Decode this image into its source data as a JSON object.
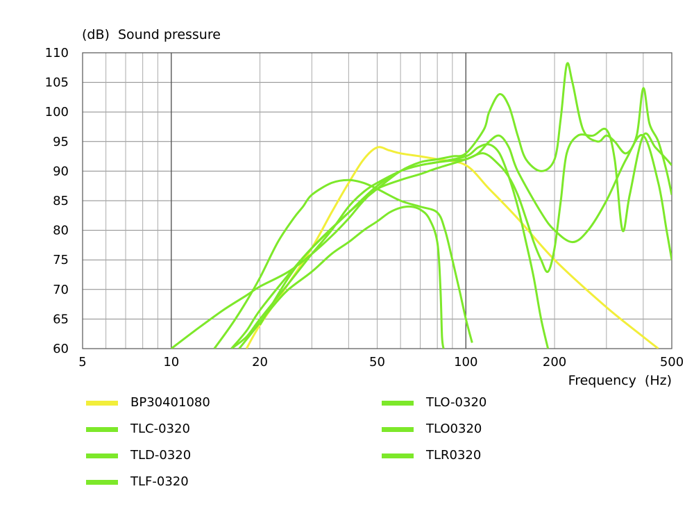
{
  "chart_data": {
    "type": "line",
    "title": "",
    "ylabel": "(dB)  Sound pressure",
    "xlabel": "Frequency  (Hz)",
    "x_scale": "log",
    "xlim": [
      5,
      500
    ],
    "ylim": [
      60,
      110
    ],
    "x_ticks": [
      5,
      10,
      20,
      50,
      100,
      200,
      500
    ],
    "x_tick_labels": [
      "5",
      "10",
      "20",
      "50",
      "100",
      "200",
      "500"
    ],
    "y_ticks": [
      60,
      65,
      70,
      75,
      80,
      85,
      90,
      95,
      100,
      105,
      110
    ],
    "y_tick_labels": [
      "60",
      "65",
      "70",
      "75",
      "80",
      "85",
      "90",
      "95",
      "100",
      "105",
      "110"
    ],
    "grid": true,
    "legend_position": "bottom",
    "series": [
      {
        "name": "BP30401080",
        "color": "#f2ee3a",
        "points": [
          [
            18,
            60
          ],
          [
            20,
            64
          ],
          [
            25,
            71
          ],
          [
            30,
            77
          ],
          [
            35,
            83
          ],
          [
            40,
            88
          ],
          [
            45,
            92
          ],
          [
            50,
            94
          ],
          [
            55,
            93.5
          ],
          [
            60,
            93
          ],
          [
            70,
            92.5
          ],
          [
            80,
            92
          ],
          [
            100,
            91
          ],
          [
            120,
            87
          ],
          [
            150,
            82
          ],
          [
            200,
            75
          ],
          [
            300,
            67
          ],
          [
            400,
            62
          ],
          [
            450,
            60
          ]
        ]
      },
      {
        "name": "TLC-0320",
        "color": "#7de82a",
        "points": [
          [
            10,
            60
          ],
          [
            12,
            63
          ],
          [
            15,
            66.5
          ],
          [
            18,
            69
          ],
          [
            20,
            70.5
          ],
          [
            25,
            73
          ],
          [
            30,
            76
          ],
          [
            35,
            79
          ],
          [
            40,
            82
          ],
          [
            45,
            85
          ],
          [
            50,
            87
          ],
          [
            60,
            88.5
          ],
          [
            70,
            89.5
          ],
          [
            80,
            90.5
          ],
          [
            100,
            92
          ],
          [
            110,
            93
          ],
          [
            120,
            95
          ],
          [
            130,
            96
          ],
          [
            140,
            94
          ],
          [
            150,
            90
          ],
          [
            180,
            83
          ],
          [
            200,
            80
          ],
          [
            230,
            78
          ],
          [
            260,
            80
          ],
          [
            300,
            85
          ],
          [
            350,
            92
          ],
          [
            400,
            96
          ],
          [
            450,
            88
          ],
          [
            480,
            80
          ],
          [
            500,
            75
          ]
        ]
      },
      {
        "name": "TLD-0320",
        "color": "#7de82a",
        "points": [
          [
            14,
            60
          ],
          [
            16,
            64
          ],
          [
            18,
            68
          ],
          [
            20,
            72
          ],
          [
            23,
            78
          ],
          [
            26,
            82
          ],
          [
            28,
            84
          ],
          [
            30,
            86
          ],
          [
            35,
            88
          ],
          [
            40,
            88.5
          ],
          [
            45,
            88
          ],
          [
            50,
            87
          ],
          [
            60,
            85
          ],
          [
            70,
            84
          ],
          [
            80,
            83
          ],
          [
            85,
            80
          ],
          [
            90,
            75
          ],
          [
            95,
            70
          ],
          [
            100,
            65
          ],
          [
            105,
            61
          ]
        ]
      },
      {
        "name": "TLF-0320",
        "color": "#7de82a",
        "points": [
          [
            16,
            60
          ],
          [
            18,
            62
          ],
          [
            20,
            65
          ],
          [
            25,
            71
          ],
          [
            30,
            76
          ],
          [
            35,
            80
          ],
          [
            40,
            84
          ],
          [
            45,
            86.5
          ],
          [
            50,
            88
          ],
          [
            60,
            90
          ],
          [
            70,
            91
          ],
          [
            80,
            91.5
          ],
          [
            100,
            92.5
          ],
          [
            110,
            94
          ],
          [
            120,
            94.5
          ],
          [
            130,
            93
          ],
          [
            140,
            89
          ],
          [
            150,
            84
          ],
          [
            160,
            78
          ],
          [
            170,
            72
          ],
          [
            180,
            65
          ],
          [
            190,
            60
          ]
        ]
      },
      {
        "name": "TLO-0320",
        "color": "#7de82a",
        "points": [
          [
            16,
            60
          ],
          [
            18,
            63
          ],
          [
            20,
            66.5
          ],
          [
            25,
            72.5
          ],
          [
            30,
            77
          ],
          [
            40,
            83
          ],
          [
            50,
            87.5
          ],
          [
            60,
            90
          ],
          [
            70,
            91
          ],
          [
            80,
            91.5
          ],
          [
            90,
            91.8
          ],
          [
            100,
            92
          ],
          [
            115,
            93
          ],
          [
            130,
            91
          ],
          [
            140,
            89
          ],
          [
            150,
            86
          ],
          [
            160,
            82
          ],
          [
            170,
            78
          ],
          [
            180,
            75
          ],
          [
            190,
            73
          ],
          [
            200,
            77
          ],
          [
            210,
            85
          ],
          [
            220,
            93
          ],
          [
            240,
            96
          ],
          [
            270,
            96
          ],
          [
            300,
            97
          ],
          [
            320,
            92
          ],
          [
            340,
            80
          ],
          [
            360,
            86
          ],
          [
            400,
            96
          ],
          [
            440,
            94
          ],
          [
            480,
            92
          ],
          [
            500,
            91
          ]
        ]
      },
      {
        "name": "TLO0320",
        "color": "#7de82a",
        "points": [
          [
            17,
            60
          ],
          [
            19,
            63
          ],
          [
            22,
            67
          ],
          [
            25,
            70
          ],
          [
            30,
            73
          ],
          [
            35,
            76
          ],
          [
            40,
            78
          ],
          [
            45,
            80
          ],
          [
            50,
            81.5
          ],
          [
            55,
            83
          ],
          [
            60,
            83.8
          ],
          [
            65,
            84
          ],
          [
            70,
            83.5
          ],
          [
            75,
            82
          ],
          [
            80,
            78
          ],
          [
            82,
            70
          ],
          [
            83,
            62
          ],
          [
            84,
            60
          ]
        ]
      },
      {
        "name": "TLR0320",
        "color": "#7de82a",
        "points": [
          [
            20,
            64
          ],
          [
            25,
            72
          ],
          [
            30,
            77
          ],
          [
            40,
            83
          ],
          [
            50,
            87
          ],
          [
            60,
            90
          ],
          [
            70,
            91.5
          ],
          [
            80,
            92
          ],
          [
            90,
            92.5
          ],
          [
            100,
            93
          ],
          [
            115,
            97
          ],
          [
            120,
            100
          ],
          [
            130,
            103
          ],
          [
            140,
            101
          ],
          [
            150,
            96
          ],
          [
            160,
            92
          ],
          [
            180,
            90
          ],
          [
            200,
            92
          ],
          [
            210,
            99
          ],
          [
            220,
            108
          ],
          [
            230,
            105
          ],
          [
            250,
            97
          ],
          [
            280,
            95
          ],
          [
            300,
            96
          ],
          [
            320,
            95
          ],
          [
            350,
            93
          ],
          [
            380,
            96
          ],
          [
            400,
            104
          ],
          [
            420,
            98
          ],
          [
            450,
            95
          ],
          [
            480,
            90
          ],
          [
            500,
            86
          ]
        ]
      }
    ]
  }
}
